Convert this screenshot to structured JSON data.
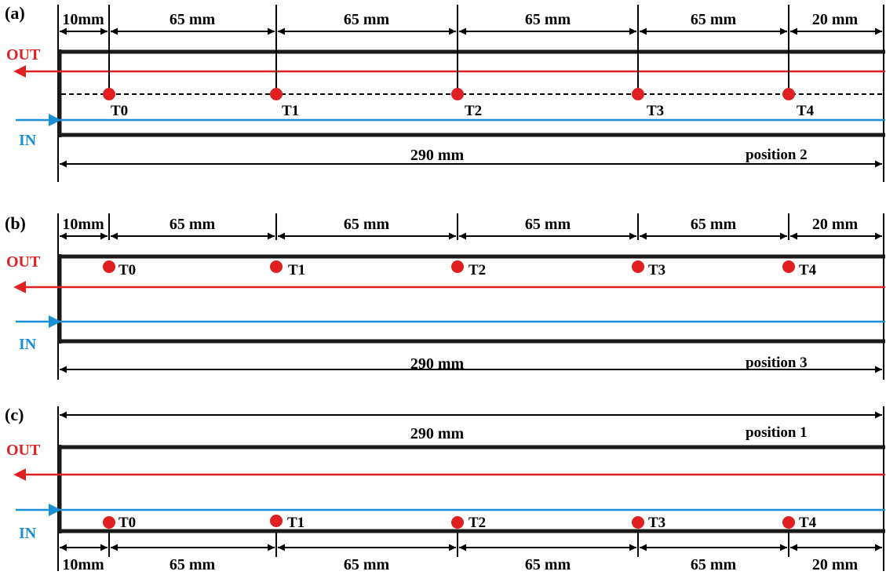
{
  "panels": [
    {
      "label": "(a)",
      "position": "position 2",
      "total_length": "290 mm",
      "segments": [
        "10mm",
        "65 mm",
        "65 mm",
        "65 mm",
        "65 mm",
        "20 mm"
      ],
      "sensors": [
        "T0",
        "T1",
        "T2",
        "T3",
        "T4"
      ]
    },
    {
      "label": "(b)",
      "position": "position 3",
      "total_length": "290 mm",
      "segments": [
        "10mm",
        "65 mm",
        "65 mm",
        "65 mm",
        "65 mm",
        "20 mm"
      ],
      "sensors": [
        "T0",
        "T1",
        "T2",
        "T3",
        "T4"
      ]
    },
    {
      "label": "(c)",
      "position": "position 1",
      "total_length": "290 mm",
      "segments": [
        "10mm",
        "65 mm",
        "65 mm",
        "65 mm",
        "65 mm",
        "20 mm"
      ],
      "sensors": [
        "T0",
        "T1",
        "T2",
        "T3",
        "T4"
      ]
    }
  ],
  "flow": {
    "out_label": "OUT",
    "in_label": "IN"
  },
  "colors": {
    "out": "#e02020",
    "in": "#1a8fd6",
    "sensor": "#e02020",
    "frame": "#1a1a1a"
  }
}
